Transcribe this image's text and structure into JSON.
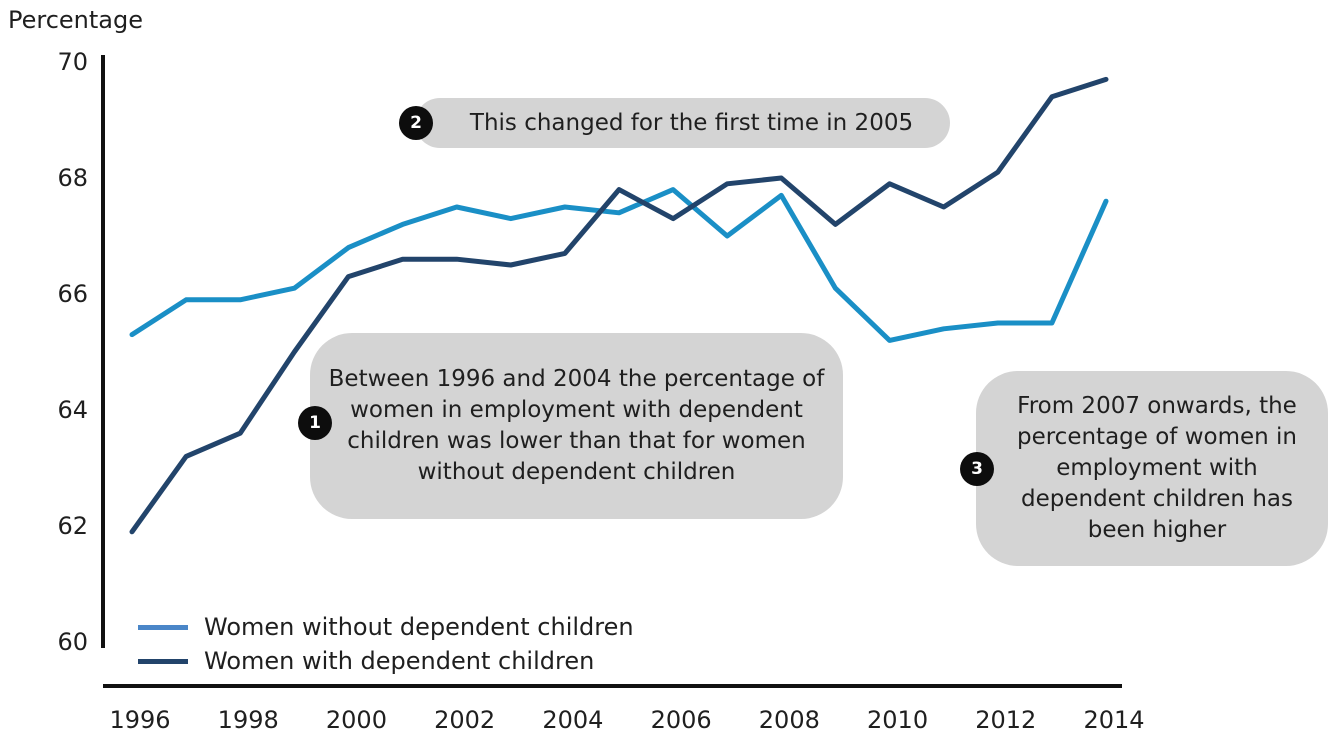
{
  "chart_data": {
    "type": "line",
    "title": "",
    "ylabel": "Percentage",
    "xlabel": "",
    "ylim": [
      60,
      70
    ],
    "yticks": [
      60,
      62,
      64,
      66,
      68,
      70
    ],
    "xlim": [
      1996,
      2014
    ],
    "xticks": [
      1996,
      1998,
      2000,
      2002,
      2004,
      2006,
      2008,
      2010,
      2012,
      2014
    ],
    "x": [
      1996,
      1997,
      1998,
      1999,
      2000,
      2001,
      2002,
      2003,
      2004,
      2005,
      2006,
      2007,
      2008,
      2009,
      2010,
      2011,
      2012,
      2013,
      2014
    ],
    "series": [
      {
        "name": "Women without dependent children",
        "color": "#1a8fc6",
        "values": [
          65.3,
          65.9,
          65.9,
          66.1,
          66.8,
          67.2,
          67.5,
          67.3,
          67.5,
          67.4,
          67.8,
          67.0,
          67.7,
          66.1,
          65.2,
          65.4,
          65.5,
          65.5,
          67.6
        ]
      },
      {
        "name": "Women with dependent children",
        "color": "#22446b",
        "values": [
          61.9,
          63.2,
          63.6,
          65.0,
          66.3,
          66.6,
          66.6,
          66.5,
          66.7,
          67.8,
          67.3,
          67.9,
          68.0,
          67.2,
          67.9,
          67.5,
          68.1,
          69.4,
          69.7
        ]
      }
    ],
    "legend": {
      "placement": "bottom-left",
      "entries": [
        {
          "label": "Women without dependent children",
          "color": "#4a86c8"
        },
        {
          "label": "Women with dependent children",
          "color": "#22446b"
        }
      ]
    },
    "annotations": [
      {
        "marker": "1",
        "text": "Between 1996 and 2004 the percentage of women in employment with dependent children was lower than that for women without dependent children"
      },
      {
        "marker": "2",
        "text": "This changed for the first time in 2005"
      },
      {
        "marker": "3",
        "text": "From 2007 onwards, the percentage of women in employment with dependent children has been higher"
      }
    ],
    "grid": false
  }
}
